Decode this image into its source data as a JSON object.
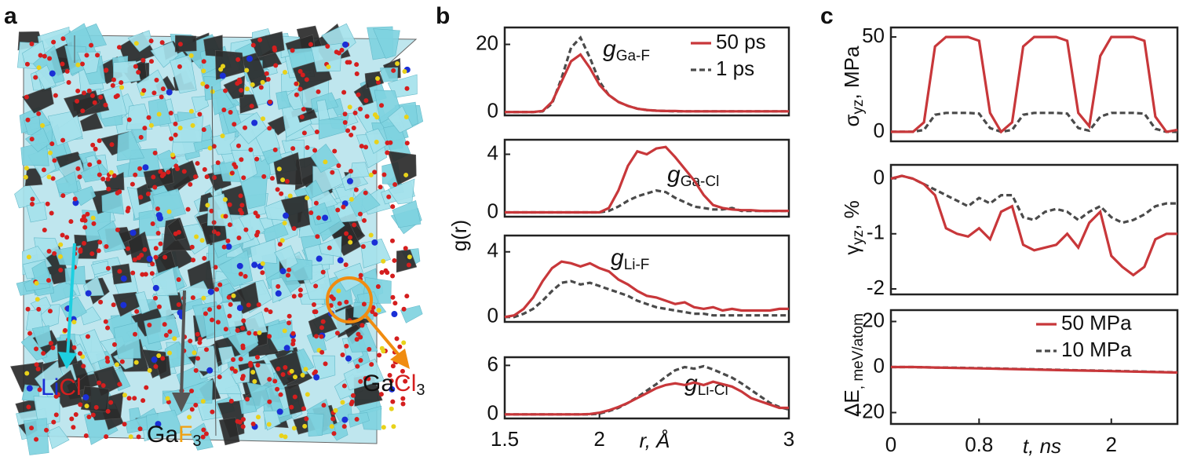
{
  "panel_labels": [
    "a",
    "b",
    "c"
  ],
  "panel_a": {
    "licl": [
      "Li",
      "Cl"
    ],
    "gaf3": [
      "Ga",
      "F",
      "3"
    ],
    "gacl3": [
      "Ga",
      "Cl",
      "3"
    ]
  },
  "chart_data": [
    {
      "type": "line",
      "ylabel": "g(r)",
      "annotation": {
        "text": "g",
        "sub": "Ga-F"
      },
      "x": [
        1.5,
        1.55,
        1.6,
        1.65,
        1.7,
        1.75,
        1.8,
        1.85,
        1.9,
        1.95,
        2.0,
        2.05,
        2.1,
        2.15,
        2.2,
        2.25,
        2.3,
        2.35,
        2.4,
        2.45,
        2.5,
        2.55,
        2.6,
        2.65,
        2.7,
        2.75,
        2.8,
        2.85,
        2.9,
        2.95,
        3.0
      ],
      "xlim": [
        1.5,
        3
      ],
      "ylim": [
        -1,
        25
      ],
      "yticks": [
        0,
        20
      ],
      "legend": "upper right",
      "series": [
        {
          "name": "50 ps",
          "color": "#c8373a",
          "linestyle": "solid",
          "values": [
            0,
            0,
            0,
            0,
            0.3,
            3,
            9,
            15,
            17,
            13,
            8,
            5,
            3,
            1.8,
            1,
            0.6,
            0.4,
            0.3,
            0.3,
            0.2,
            0.2,
            0.2,
            0.2,
            0.2,
            0.2,
            0.2,
            0.2,
            0.2,
            0.2,
            0.2,
            0.2
          ]
        },
        {
          "name": "1 ps",
          "color": "#4a4a4a",
          "linestyle": "dashed",
          "values": [
            0,
            0,
            0,
            0,
            0.2,
            2.5,
            10,
            19,
            22,
            16,
            9,
            5,
            3,
            1.8,
            1,
            0.6,
            0.4,
            0.3,
            0.2,
            0.2,
            0.2,
            0.2,
            0.2,
            0.2,
            0.2,
            0.2,
            0.2,
            0.2,
            0.2,
            0.2,
            0.2
          ]
        }
      ]
    },
    {
      "type": "line",
      "annotation": {
        "text": "g",
        "sub": "Ga-Cl"
      },
      "x": [
        1.5,
        1.55,
        1.6,
        1.65,
        1.7,
        1.75,
        1.8,
        1.85,
        1.9,
        1.95,
        2.0,
        2.05,
        2.1,
        2.15,
        2.2,
        2.25,
        2.3,
        2.35,
        2.4,
        2.45,
        2.5,
        2.55,
        2.6,
        2.65,
        2.7,
        2.75,
        2.8,
        2.85,
        2.9,
        2.95,
        3.0
      ],
      "xlim": [
        1.5,
        3
      ],
      "ylim": [
        -0.3,
        5
      ],
      "yticks": [
        0,
        4
      ],
      "series": [
        {
          "color": "#c8373a",
          "linestyle": "solid",
          "values": [
            0,
            0,
            0,
            0,
            0,
            0,
            0,
            0,
            0,
            0,
            0,
            0.3,
            1.5,
            3.2,
            4.2,
            4.0,
            4.4,
            4.5,
            3.8,
            3.0,
            2.2,
            1.2,
            0.5,
            0.3,
            0.2,
            0.15,
            0.15,
            0.1,
            0.1,
            0.1,
            0.1
          ]
        },
        {
          "color": "#4a4a4a",
          "linestyle": "dashed",
          "values": [
            0,
            0,
            0,
            0,
            0,
            0,
            0,
            0,
            0,
            0,
            0,
            0.1,
            0.4,
            0.8,
            1.1,
            1.3,
            1.5,
            1.4,
            1.0,
            0.7,
            0.4,
            0.3,
            0.2,
            0.2,
            0.3,
            0.1,
            0.1,
            0.1,
            0.1,
            0.1,
            0.1
          ]
        }
      ]
    },
    {
      "type": "line",
      "annotation": {
        "text": "g",
        "sub": "Li-F"
      },
      "x": [
        1.5,
        1.55,
        1.6,
        1.65,
        1.7,
        1.75,
        1.8,
        1.85,
        1.9,
        1.95,
        2.0,
        2.05,
        2.1,
        2.15,
        2.2,
        2.25,
        2.3,
        2.35,
        2.4,
        2.45,
        2.5,
        2.55,
        2.6,
        2.65,
        2.7,
        2.75,
        2.8,
        2.85,
        2.9,
        2.95,
        3.0
      ],
      "xlim": [
        1.5,
        3
      ],
      "ylim": [
        -0.3,
        5
      ],
      "yticks": [
        0,
        4
      ],
      "series": [
        {
          "color": "#c8373a",
          "linestyle": "solid",
          "values": [
            0,
            0.1,
            0.5,
            1.2,
            2.2,
            3.0,
            3.4,
            3.3,
            3.1,
            3.3,
            3.0,
            2.8,
            2.3,
            2.0,
            1.6,
            1.3,
            1.2,
            1.0,
            0.8,
            0.9,
            0.6,
            0.5,
            0.6,
            0.4,
            0.5,
            0.4,
            0.4,
            0.4,
            0.4,
            0.5,
            0.5
          ]
        },
        {
          "color": "#4a4a4a",
          "linestyle": "dashed",
          "values": [
            0,
            0,
            0.2,
            0.5,
            1.0,
            1.6,
            2.1,
            2.2,
            2.0,
            2.1,
            1.9,
            1.7,
            1.5,
            1.3,
            1.0,
            0.8,
            0.6,
            0.5,
            0.4,
            0.3,
            0.2,
            0.2,
            0.1,
            0.1,
            0.1,
            0.1,
            0.1,
            0.1,
            0.1,
            0.1,
            0.1
          ]
        }
      ]
    },
    {
      "type": "line",
      "annotation": {
        "text": "g",
        "sub": "Li-Cl"
      },
      "xlabel": "r, Å",
      "x": [
        1.5,
        1.55,
        1.6,
        1.65,
        1.7,
        1.75,
        1.8,
        1.85,
        1.9,
        1.95,
        2.0,
        2.05,
        2.1,
        2.15,
        2.2,
        2.25,
        2.3,
        2.35,
        2.4,
        2.45,
        2.5,
        2.55,
        2.6,
        2.65,
        2.7,
        2.75,
        2.8,
        2.85,
        2.9,
        2.95,
        3.0
      ],
      "xlim": [
        1.5,
        3
      ],
      "xticks": [
        1.5,
        2,
        3
      ],
      "ylim": [
        -0.5,
        7
      ],
      "yticks": [
        0,
        6
      ],
      "series": [
        {
          "color": "#c8373a",
          "linestyle": "solid",
          "values": [
            0,
            0,
            0,
            0,
            0,
            0,
            0,
            0,
            0,
            0.05,
            0.2,
            0.5,
            0.9,
            1.4,
            2.0,
            2.6,
            3.2,
            3.6,
            3.8,
            3.6,
            3.9,
            3.6,
            4.0,
            3.7,
            3.4,
            2.8,
            2.0,
            1.6,
            1.2,
            0.8,
            0.8
          ]
        },
        {
          "color": "#4a4a4a",
          "linestyle": "dashed",
          "values": [
            0,
            0,
            0,
            0,
            0,
            0,
            0,
            0,
            0,
            0,
            0.1,
            0.4,
            0.8,
            1.4,
            2.1,
            2.9,
            3.7,
            4.6,
            5.4,
            5.8,
            5.6,
            5.9,
            5.5,
            5.0,
            4.5,
            3.8,
            3.0,
            2.2,
            1.4,
            0.9,
            0.6
          ]
        }
      ]
    },
    {
      "type": "line",
      "ylabel": "σ",
      "ylabel_sub": "yz",
      "ylabel_unit": ", MPa",
      "x": [
        0,
        0.1,
        0.2,
        0.3,
        0.4,
        0.5,
        0.6,
        0.7,
        0.8,
        0.9,
        1.0,
        1.1,
        1.2,
        1.3,
        1.4,
        1.5,
        1.6,
        1.7,
        1.8,
        1.9,
        2.0,
        2.1,
        2.2,
        2.3,
        2.4,
        2.5,
        2.6
      ],
      "xlim": [
        0,
        2.6
      ],
      "ylim": [
        -5,
        55
      ],
      "yticks": [
        0,
        50
      ],
      "series": [
        {
          "color": "#c8373a",
          "linestyle": "solid",
          "values": [
            0,
            0,
            0,
            5,
            45,
            50,
            50,
            50,
            48,
            10,
            0,
            5,
            45,
            50,
            50,
            50,
            48,
            10,
            3,
            40,
            50,
            50,
            50,
            48,
            8,
            0,
            1
          ]
        },
        {
          "color": "#4a4a4a",
          "linestyle": "dashed",
          "values": [
            0,
            0,
            0,
            1,
            9,
            10,
            10,
            10,
            9.6,
            2,
            0,
            1,
            9,
            10,
            10,
            10,
            9.6,
            2,
            0.6,
            8,
            10,
            10,
            10,
            9.6,
            1.6,
            0,
            0
          ]
        }
      ]
    },
    {
      "type": "line",
      "ylabel": "γ",
      "ylabel_sub": "yz",
      "ylabel_unit": ", %",
      "x": [
        0,
        0.1,
        0.2,
        0.3,
        0.4,
        0.5,
        0.6,
        0.7,
        0.8,
        0.9,
        1.0,
        1.1,
        1.2,
        1.3,
        1.4,
        1.5,
        1.6,
        1.7,
        1.8,
        1.9,
        2.0,
        2.1,
        2.2,
        2.3,
        2.4,
        2.5,
        2.6
      ],
      "xlim": [
        0,
        2.6
      ],
      "ylim": [
        -2.1,
        0.25
      ],
      "yticks": [
        0,
        -1,
        -2
      ],
      "series": [
        {
          "color": "#c8373a",
          "linestyle": "solid",
          "values": [
            0,
            0.05,
            0,
            -0.1,
            -0.3,
            -0.9,
            -1.0,
            -1.05,
            -0.9,
            -1.1,
            -0.6,
            -0.5,
            -1.2,
            -1.3,
            -1.25,
            -1.2,
            -1.0,
            -1.25,
            -0.8,
            -0.6,
            -1.4,
            -1.6,
            -1.75,
            -1.6,
            -1.1,
            -1.0,
            -1.0
          ]
        },
        {
          "color": "#4a4a4a",
          "linestyle": "dashed",
          "values": [
            0,
            0.05,
            0,
            -0.1,
            -0.2,
            -0.3,
            -0.4,
            -0.5,
            -0.35,
            -0.45,
            -0.3,
            -0.3,
            -0.7,
            -0.75,
            -0.6,
            -0.55,
            -0.6,
            -0.75,
            -0.6,
            -0.5,
            -0.7,
            -0.8,
            -0.75,
            -0.65,
            -0.5,
            -0.45,
            -0.45
          ]
        }
      ]
    },
    {
      "type": "line",
      "ylabel": "ΔE",
      "ylabel_sub": ", meV/atom",
      "xlabel": "t, ns",
      "x": [
        0,
        0.2,
        0.4,
        0.6,
        0.8,
        1.0,
        1.2,
        1.4,
        1.6,
        1.8,
        2.0,
        2.2,
        2.4,
        2.6
      ],
      "xlim": [
        0,
        2.6
      ],
      "xticks": [
        0,
        0.8,
        2
      ],
      "ylim": [
        -25,
        25
      ],
      "yticks": [
        -20,
        0,
        20
      ],
      "legend": "upper right",
      "series": [
        {
          "name": "50 MPa",
          "color": "#c8373a",
          "linestyle": "solid",
          "values": [
            0,
            0,
            -0.2,
            -0.4,
            -0.6,
            -0.8,
            -1,
            -1.2,
            -1.4,
            -1.6,
            -1.8,
            -2,
            -2.2,
            -2.4
          ]
        },
        {
          "name": "10 MPa",
          "color": "#4a4a4a",
          "linestyle": "dashed",
          "values": [
            0,
            0,
            -0.2,
            -0.3,
            -0.5,
            -0.7,
            -0.9,
            -1.1,
            -1.3,
            -1.5,
            -1.7,
            -1.9,
            -2.1,
            -2.3
          ]
        }
      ]
    }
  ]
}
